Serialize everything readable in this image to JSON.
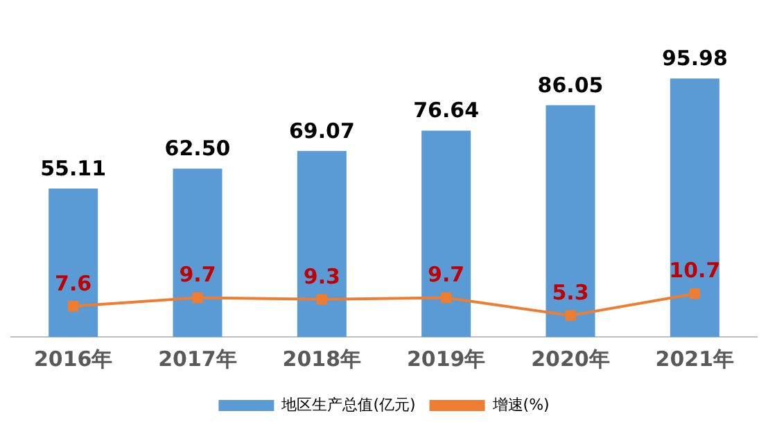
{
  "chart_data": {
    "type": "bar",
    "categories": [
      "2016年",
      "2017年",
      "2018年",
      "2019年",
      "2020年",
      "2021年"
    ],
    "series": [
      {
        "name": "地区生产总值(亿元)",
        "color": "#5b9bd5",
        "values": [
          55.11,
          62.5,
          69.07,
          76.64,
          86.05,
          95.98
        ],
        "value_labels": [
          "55.11",
          "62.50",
          "69.07",
          "76.64",
          "86.05",
          "95.98"
        ]
      },
      {
        "name": "增速(%)",
        "type": "line",
        "axis": "y2",
        "color": "#ed7d31",
        "marker": "square",
        "values": [
          7.6,
          9.7,
          9.3,
          9.7,
          5.3,
          10.7
        ]
      }
    ],
    "tick_labels": "x",
    "data_labels": true,
    "legend": "bottom",
    "grid": false
  }
}
